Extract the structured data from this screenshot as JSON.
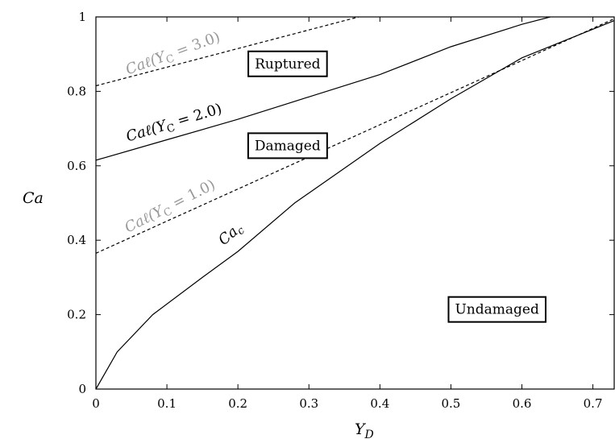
{
  "chart_data": {
    "type": "line",
    "title": "",
    "xlabel": "Y_D",
    "ylabel": "Ca",
    "xlim": [
      0,
      0.73
    ],
    "ylim": [
      0,
      1
    ],
    "xticks": [
      0,
      0.1,
      0.2,
      0.3,
      0.4,
      0.5,
      0.6,
      0.7
    ],
    "xtick_labels": [
      "0",
      "0.1",
      "0.2",
      "0.3",
      "0.4",
      "0.5",
      "0.6",
      "0.7"
    ],
    "yticks": [
      0,
      0.2,
      0.4,
      0.6,
      0.8,
      1
    ],
    "ytick_labels": [
      "0",
      "0.2",
      "0.4",
      "0.6",
      "0.8",
      "1"
    ],
    "grid": false,
    "series": [
      {
        "name": "Ca_c",
        "label_main": "Ca",
        "label_sub": "c",
        "style": "solid",
        "color": "#000000",
        "label_color": "#000000",
        "x": [
          0,
          0.03,
          0.08,
          0.15,
          0.2,
          0.28,
          0.4,
          0.5,
          0.6,
          0.73
        ],
        "y": [
          0,
          0.1,
          0.2,
          0.3,
          0.37,
          0.5,
          0.66,
          0.78,
          0.89,
          0.99
        ]
      },
      {
        "name": "Ca_ℓ(Y_C = 1.0)",
        "label_main": "Caℓ(Y",
        "label_sub": "C",
        "label_tail": " = 1.0)",
        "style": "dashed",
        "color": "#000000",
        "label_color": "#999999",
        "x": [
          0,
          0.73
        ],
        "y": [
          0.365,
          0.995
        ]
      },
      {
        "name": "Ca_ℓ(Y_C = 2.0)",
        "label_main": "Caℓ(Y",
        "label_sub": "C",
        "label_tail": " = 2.0)",
        "style": "solid",
        "color": "#000000",
        "label_color": "#000000",
        "x": [
          0,
          0.1,
          0.2,
          0.3,
          0.4,
          0.5,
          0.6,
          0.64
        ],
        "y": [
          0.615,
          0.67,
          0.725,
          0.785,
          0.845,
          0.92,
          0.98,
          1.0
        ]
      },
      {
        "name": "Ca_ℓ(Y_C = 3.0)",
        "label_main": "Caℓ(Y",
        "label_sub": "C",
        "label_tail": " = 3.0)",
        "style": "dashed",
        "color": "#000000",
        "label_color": "#999999",
        "x": [
          0,
          0.37
        ],
        "y": [
          0.815,
          1.0
        ]
      }
    ],
    "regions": [
      "Ruptured",
      "Damaged",
      "Undamaged"
    ]
  }
}
